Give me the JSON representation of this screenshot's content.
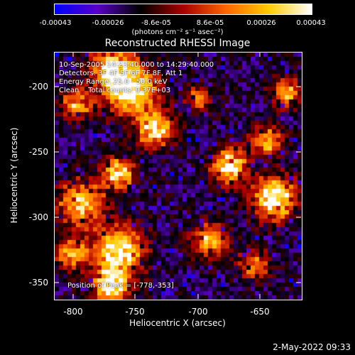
{
  "colorbar": {
    "ticks": [
      "-0.00043",
      "-0.00026",
      "-8.6e-05",
      "8.6e-05",
      "0.00026",
      "0.00043"
    ],
    "unit_label": "(photons cm⁻² s⁻¹ asec⁻²)",
    "gradient": [
      "#0000ff",
      "#5a00c8",
      "#000000",
      "#aa0000",
      "#ff6600",
      "#ffcc00",
      "#ffffff"
    ]
  },
  "plot": {
    "title": "Reconstructed RHESSI Image",
    "annotations": {
      "time_range": "10-Sep-2005 14:23:40.000 to 14:29:40.000",
      "detectors": "Detectors: 3F 4F 5F 6F 7F 8F, Att 1",
      "energy_range": "Energy Range: 25.0 - 50.0 keV",
      "clean_counts": "Clean    Total counts: 9.37E+03",
      "peak_position": "Position of Peak = [-778,-353]"
    },
    "x_axis": {
      "label": "Heliocentric X (arcsec)",
      "ticks": [
        "-800",
        "-750",
        "-700",
        "-650"
      ]
    },
    "y_axis": {
      "label": "Heliocentric Y (arcsec)",
      "ticks": [
        "-200",
        "-250",
        "-300",
        "-350"
      ]
    }
  },
  "footer": {
    "timestamp": "2-May-2022 09:33"
  }
}
